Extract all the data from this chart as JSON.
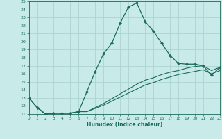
{
  "xlabel": "Humidex (Indice chaleur)",
  "background_color": "#c8eae8",
  "grid_color": "#a8d0ce",
  "line_color": "#1a6b5a",
  "x_values": [
    0,
    1,
    2,
    3,
    4,
    5,
    6,
    7,
    8,
    9,
    10,
    11,
    12,
    13,
    14,
    15,
    16,
    17,
    18,
    19,
    20,
    21,
    22,
    23
  ],
  "line_main_y": [
    13.0,
    11.8,
    11.0,
    11.1,
    11.1,
    11.1,
    11.3,
    13.8,
    16.3,
    18.5,
    19.8,
    22.3,
    24.3,
    24.8,
    22.5,
    21.3,
    19.8,
    18.3,
    17.3,
    17.2,
    17.2,
    17.0,
    15.8,
    16.8
  ],
  "line_upper_y": [
    13.0,
    11.8,
    11.0,
    11.1,
    11.1,
    11.1,
    11.3,
    11.3,
    11.8,
    12.3,
    12.9,
    13.5,
    14.1,
    14.7,
    15.2,
    15.5,
    15.9,
    16.2,
    16.4,
    16.7,
    16.9,
    17.0,
    16.4,
    16.8
  ],
  "line_lower_y": [
    13.0,
    11.8,
    11.0,
    11.1,
    11.1,
    11.1,
    11.3,
    11.3,
    11.7,
    12.1,
    12.6,
    13.1,
    13.6,
    14.1,
    14.6,
    14.9,
    15.3,
    15.6,
    15.9,
    16.1,
    16.3,
    16.5,
    16.0,
    16.4
  ],
  "xlim": [
    0,
    23
  ],
  "ylim": [
    11,
    25
  ],
  "yticks": [
    11,
    12,
    13,
    14,
    15,
    16,
    17,
    18,
    19,
    20,
    21,
    22,
    23,
    24,
    25
  ],
  "xticks": [
    0,
    1,
    2,
    3,
    4,
    5,
    6,
    7,
    8,
    9,
    10,
    11,
    12,
    13,
    14,
    15,
    16,
    17,
    18,
    19,
    20,
    21,
    22,
    23
  ]
}
